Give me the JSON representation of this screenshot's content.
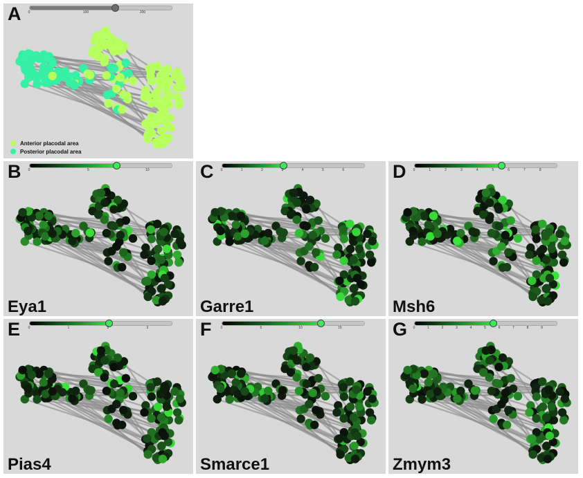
{
  "colors": {
    "anterior": "#b6ff5e",
    "posterior": "#35f0a5",
    "panel_bg": "#d9d9d9"
  },
  "panels": [
    {
      "id": "A",
      "letter": "A",
      "gene": "",
      "mode": "cluster",
      "slider": {
        "ticks": [
          "0",
          "100",
          "200"
        ],
        "max": 250,
        "value": 150,
        "style": "gray"
      }
    },
    {
      "id": "B",
      "letter": "B",
      "gene": "Eya1",
      "mode": "expr",
      "slider": {
        "ticks": [
          "0",
          "5",
          "10"
        ],
        "max": 12,
        "value": 7.3,
        "style": "green"
      }
    },
    {
      "id": "C",
      "letter": "C",
      "gene": "Garre1",
      "mode": "expr",
      "slider": {
        "ticks": [
          "0",
          "1",
          "2",
          "3",
          "4",
          "5",
          "6"
        ],
        "max": 7,
        "value": 3,
        "style": "green"
      }
    },
    {
      "id": "D",
      "letter": "D",
      "gene": "Msh6",
      "mode": "expr",
      "slider": {
        "ticks": [
          "0",
          "1",
          "2",
          "3",
          "4",
          "5",
          "6",
          "7",
          "8"
        ],
        "max": 9,
        "value": 5.5,
        "style": "green"
      }
    },
    {
      "id": "E",
      "letter": "E",
      "gene": "Pias4",
      "mode": "expr",
      "slider": {
        "ticks": [
          "0",
          "1",
          "2",
          "3"
        ],
        "max": 3.6,
        "value": 2,
        "style": "green"
      }
    },
    {
      "id": "F",
      "letter": "F",
      "gene": "Smarce1",
      "mode": "expr",
      "slider": {
        "ticks": [
          "0",
          "5",
          "10",
          "15"
        ],
        "max": 18,
        "value": 12.5,
        "style": "green"
      }
    },
    {
      "id": "G",
      "letter": "G",
      "gene": "Zmym3",
      "mode": "expr",
      "slider": {
        "ticks": [
          "0",
          "1",
          "2",
          "3",
          "4",
          "5",
          "6",
          "7",
          "8",
          "9"
        ],
        "max": 10,
        "value": 5.5,
        "style": "green"
      }
    }
  ],
  "legend": [
    {
      "label": "Anterior placodal area",
      "color_key": "anterior"
    },
    {
      "label": "Posterior placodal area",
      "color_key": "posterior"
    }
  ]
}
